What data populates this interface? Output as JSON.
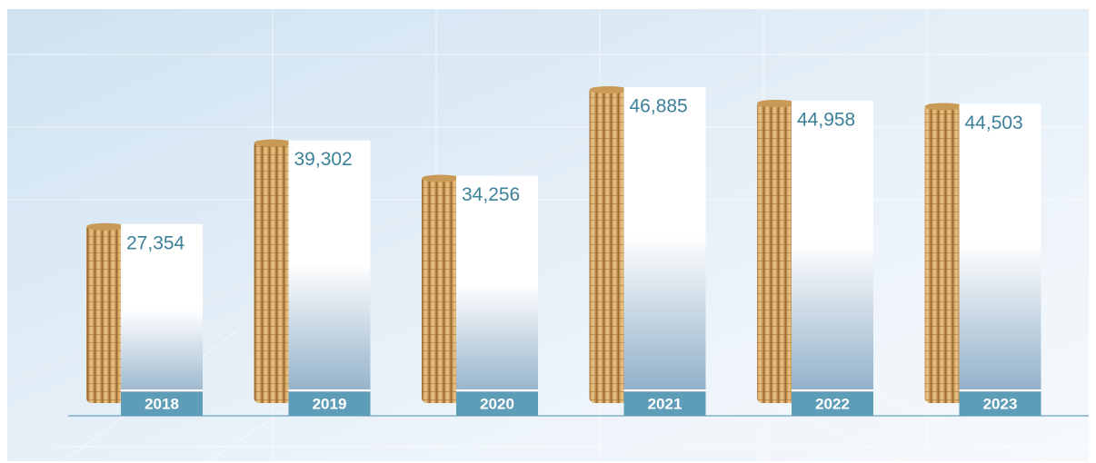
{
  "chart_data": {
    "type": "bar",
    "categories": [
      "2018",
      "2019",
      "2020",
      "2021",
      "2022",
      "2023"
    ],
    "values": [
      27354,
      39302,
      34256,
      46885,
      44958,
      44503
    ],
    "value_labels": [
      "27,354",
      "39,302",
      "34,256",
      "46,885",
      "44,958",
      "44,503"
    ],
    "color": "#c99a55"
  }
}
